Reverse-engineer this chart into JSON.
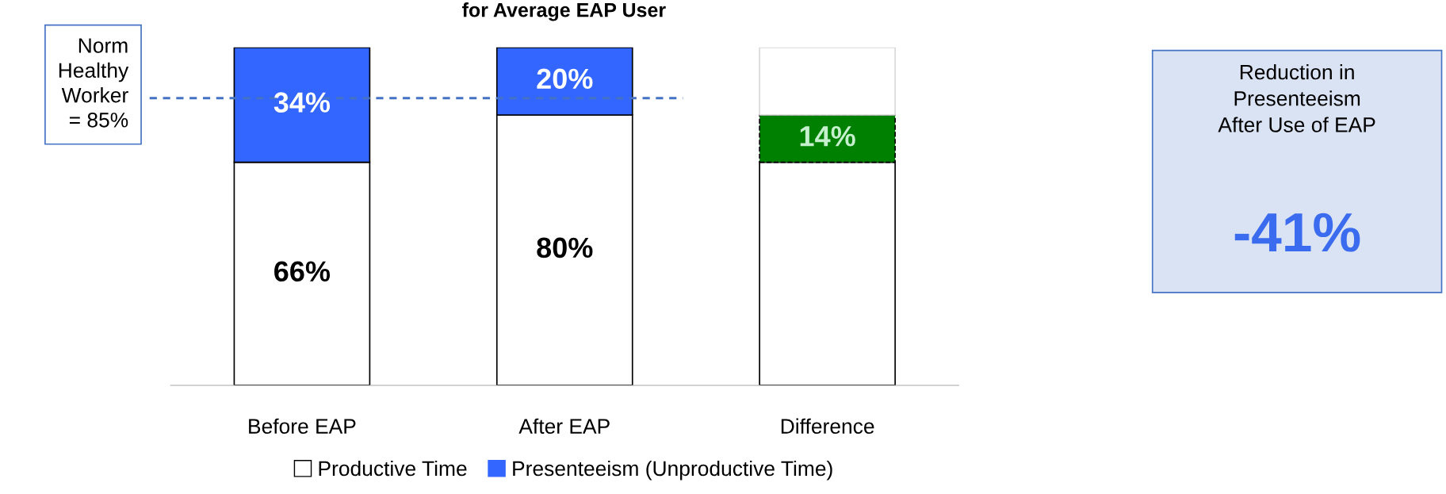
{
  "chart_data": {
    "type": "bar",
    "title": "for Average EAP User",
    "stacked": true,
    "categories": [
      "Before EAP",
      "After EAP",
      "Difference"
    ],
    "series": [
      {
        "name": "Productive Time",
        "color": "#ffffff",
        "values": [
          66,
          80,
          66
        ],
        "value_labels": [
          "66%",
          "80%",
          null
        ]
      },
      {
        "color": "#008000",
        "values": [
          null,
          null,
          14
        ],
        "value_labels": [
          null,
          null,
          "14%"
        ],
        "line_style": "dashed"
      },
      {
        "name": "Presenteeism (Unproductive Time)",
        "color": "#3366ff",
        "values": [
          34,
          20,
          null
        ],
        "value_labels": [
          "34%",
          "20%",
          null
        ]
      },
      {
        "color": "#ffffff",
        "values": [
          null,
          null,
          20
        ],
        "value_labels": [
          null,
          null,
          null
        ]
      }
    ],
    "ylim": [
      0,
      100
    ],
    "tick_labels": "x",
    "grid": false,
    "legend": "bottom",
    "ref_lines": [
      {
        "axis": "y",
        "value": 85,
        "label": "Norm\nHealthy\nWorker\n= 85%",
        "color": "#4472c4",
        "line_style": "dashed"
      }
    ],
    "annotations": [
      "Reduction in\nPresenteeism\nAfter Use of EAP",
      "-41%"
    ]
  }
}
